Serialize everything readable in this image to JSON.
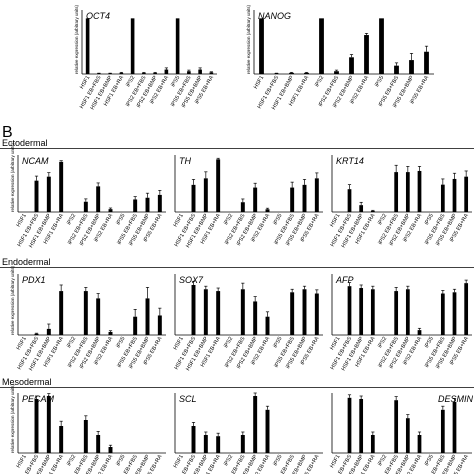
{
  "figure": {
    "panel_b_label": "B",
    "sections": [
      "Ectodermal",
      "Endodermal",
      "Mesodermal"
    ],
    "ylabel": "relative expression (arbitrary units)",
    "categories_short": [
      "HSF1",
      "HSF1 EB+FBS",
      "HSF1 EB+BMP",
      "HSF1 EB+RA",
      "iPS2",
      "iPS2 EB+FBS",
      "iPS2 EB+BMP",
      "iPS2 EB+RA",
      "iPS5",
      "iPS5 EB+FBS",
      "iPS5 EB+BMP",
      "iPS5 EB+RA"
    ],
    "categories_long": [
      "HSF1",
      "HSF1 EB+FBS",
      "HSF1 EB+BMP",
      "HSF1 EB+RA",
      "iPS2",
      "iPS2 EB+FBS",
      "iPS2 EB+BMP",
      "iPS2 EB+RA",
      "iPS5",
      "iPS5 EB+FBS",
      "iPS5 EB+BMP",
      "iPS5 EB+RA"
    ]
  },
  "chart_data": [
    {
      "type": "bar",
      "title": "OCT4",
      "section": "A",
      "ylabel": "relative expression (arbitrary units)",
      "categories": [
        "HSF1",
        "HSF1 EB+FBS",
        "HSF1 EB+BMP",
        "HSF1 EB+RA",
        "iPS2",
        "iPS2 EB+FBS",
        "iPS2 EB+BMP",
        "iPS2 EB+RA",
        "iPS5",
        "iPS5 EB+FBS",
        "iPS5 EB+BMP",
        "iPS5 EB+RA"
      ],
      "values": [
        1.0,
        0.01,
        0.01,
        0.02,
        1.0,
        0.02,
        0.02,
        0.08,
        1.0,
        0.05,
        0.08,
        0.03
      ],
      "errors": [
        0,
        0.005,
        0.005,
        0.01,
        0,
        0.01,
        0.01,
        0.03,
        0,
        0.02,
        0.03,
        0.01
      ],
      "ylim": [
        0,
        1.15
      ]
    },
    {
      "type": "bar",
      "title": "NANOG",
      "section": "A",
      "ylabel": "relative expression (arbitrary units)",
      "categories": [
        "HSF1",
        "HSF1 EB+FBS",
        "HSF1 EB+BMP",
        "HSF1 EB+RA",
        "iPS2",
        "iPS2 EB+FBS",
        "iPS2 EB+BMP",
        "iPS2 EB+RA",
        "iPS5",
        "iPS5 EB+FBS",
        "iPS5 EB+BMP",
        "iPS5 EB+RA"
      ],
      "values": [
        1.0,
        0.01,
        0.02,
        0.02,
        1.0,
        0.05,
        0.3,
        0.7,
        1.0,
        0.15,
        0.25,
        0.4
      ],
      "errors": [
        0,
        0.005,
        0.01,
        0.01,
        0,
        0.02,
        0.05,
        0.03,
        0,
        0.05,
        0.12,
        0.1
      ],
      "ylim": [
        0,
        1.15
      ]
    },
    {
      "type": "bar",
      "title": "NCAM",
      "section": "Ectodermal",
      "ylabel": "relative expression (arbitrary units)",
      "categories": [
        "HSF1",
        "HSF1 EB+FBS",
        "HSF1 EB+BMP",
        "HSF1 EB+RA",
        "iPS2",
        "iPS2 EB+FBS",
        "iPS2 EB+BMP",
        "iPS2 EB+RA",
        "iPS5",
        "iPS5 EB+FBS",
        "iPS5 EB+BMP",
        "iPS5 EB+RA"
      ],
      "values": [
        0,
        0.55,
        0.62,
        0.88,
        0,
        0.18,
        0.45,
        0.05,
        0,
        0.22,
        0.25,
        0.3
      ],
      "errors": [
        0,
        0.08,
        0.07,
        0.02,
        0,
        0.05,
        0.06,
        0.02,
        0,
        0.05,
        0.08,
        0.08
      ],
      "ylim": [
        0,
        1.0
      ]
    },
    {
      "type": "bar",
      "title": "TH",
      "section": "Ectodermal",
      "ylabel": "",
      "categories": [
        "HSF1",
        "HSF1 EB+FBS",
        "HSF1 EB+BMP",
        "HSF1 EB+RA",
        "iPS2",
        "iPS2 EB+FBS",
        "iPS2 EB+BMP",
        "iPS2 EB+RA",
        "iPS5",
        "iPS5 EB+FBS",
        "iPS5 EB+BMP",
        "iPS5 EB+RA"
      ],
      "values": [
        0,
        0.5,
        0.62,
        0.97,
        0,
        0.18,
        0.45,
        0.05,
        0,
        0.45,
        0.5,
        0.62
      ],
      "errors": [
        0,
        0.1,
        0.12,
        0.02,
        0,
        0.06,
        0.08,
        0.02,
        0,
        0.1,
        0.1,
        0.1
      ],
      "ylim": [
        0,
        1.05
      ]
    },
    {
      "type": "bar",
      "title": "KRT14",
      "section": "Ectodermal",
      "ylabel": "",
      "categories": [
        "HSF1",
        "HSF1 EB+FBS",
        "HSF1 EB+BMP",
        "HSF1 EB+RA",
        "iPS2",
        "iPS2 EB+FBS",
        "iPS2 EB+BMP",
        "iPS2 EB+RA",
        "iPS5",
        "iPS5 EB+FBS",
        "iPS5 EB+BMP",
        "iPS5 EB+RA"
      ],
      "values": [
        0,
        0.4,
        0.12,
        0.02,
        0,
        0.7,
        0.7,
        0.72,
        0,
        0.48,
        0.58,
        0.62
      ],
      "errors": [
        0,
        0.08,
        0.05,
        0.01,
        0,
        0.12,
        0.1,
        0.08,
        0,
        0.1,
        0.1,
        0.1
      ],
      "ylim": [
        0,
        1.0
      ]
    },
    {
      "type": "bar",
      "title": "PDX1",
      "section": "Endodermal",
      "ylabel": "relative expression (arbitrary units)",
      "categories": [
        "HSF1",
        "HSF1 EB+FBS",
        "HSF1 EB+BMP",
        "HSF1 EB+RA",
        "iPS2",
        "iPS2 EB+FBS",
        "iPS2 EB+BMP",
        "iPS2 EB+RA",
        "iPS5",
        "iPS5 EB+FBS",
        "iPS5 EB+BMP",
        "iPS5 EB+RA"
      ],
      "values": [
        0,
        0.02,
        0.1,
        0.72,
        0,
        0.72,
        0.6,
        0.05,
        0,
        0.3,
        0.6,
        0.32
      ],
      "errors": [
        0,
        0.01,
        0.08,
        0.1,
        0,
        0.06,
        0.08,
        0.02,
        0,
        0.12,
        0.18,
        0.12
      ],
      "ylim": [
        0,
        1.0
      ]
    },
    {
      "type": "bar",
      "title": "SOX7",
      "section": "Endodermal",
      "ylabel": "",
      "categories": [
        "HSF1",
        "HSF1 EB+FBS",
        "HSF1 EB+BMP",
        "HSF1 EB+RA",
        "iPS2",
        "iPS2 EB+FBS",
        "iPS2 EB+BMP",
        "iPS2 EB+RA",
        "iPS5",
        "iPS5 EB+FBS",
        "iPS5 EB+BMP",
        "iPS5 EB+RA"
      ],
      "values": [
        0,
        0.82,
        0.75,
        0.72,
        0,
        0.75,
        0.55,
        0.3,
        0,
        0.7,
        0.75,
        0.68
      ],
      "errors": [
        0,
        0.06,
        0.05,
        0.05,
        0,
        0.1,
        0.08,
        0.08,
        0,
        0.05,
        0.05,
        0.06
      ],
      "ylim": [
        0,
        1.0
      ]
    },
    {
      "type": "bar",
      "title": "AFP",
      "section": "Endodermal",
      "ylabel": "",
      "categories": [
        "HSF1",
        "HSF1 EB+FBS",
        "HSF1 EB+BMP",
        "HSF1 EB+RA",
        "iPS2",
        "iPS2 EB+FBS",
        "iPS2 EB+BMP",
        "iPS2 EB+RA",
        "iPS5",
        "iPS5 EB+FBS",
        "iPS5 EB+BMP",
        "iPS5 EB+RA"
      ],
      "values": [
        0,
        0.8,
        0.77,
        0.75,
        0,
        0.72,
        0.75,
        0.08,
        0,
        0.68,
        0.7,
        0.85
      ],
      "errors": [
        0,
        0.06,
        0.05,
        0.05,
        0,
        0.06,
        0.05,
        0.03,
        0,
        0.05,
        0.05,
        0.05
      ],
      "ylim": [
        0,
        1.0
      ]
    },
    {
      "type": "bar",
      "title": "PECAM",
      "section": "Mesodermal",
      "ylabel": "relative expression (arbitrary units)",
      "categories": [
        "HSF1",
        "HSF1 EB+FBS",
        "HSF1 EB+BMP",
        "HSF1 EB+RA",
        "iPS2",
        "iPS2 EB+FBS",
        "iPS2 EB+BMP",
        "iPS2 EB+RA",
        "iPS5",
        "iPS5 EB+FBS",
        "iPS5 EB+BMP",
        "iPS5 EB+RA"
      ],
      "values": [
        0,
        0.9,
        0.95,
        0.45,
        0,
        0.55,
        0.3,
        0.1,
        0,
        0,
        0,
        0
      ],
      "errors": [
        0,
        0.05,
        0.04,
        0.08,
        0,
        0.07,
        0.06,
        0.03,
        0,
        0,
        0,
        0
      ],
      "ylim": [
        0,
        1.0
      ]
    },
    {
      "type": "bar",
      "title": "SCL",
      "section": "Mesodermal",
      "ylabel": "",
      "categories": [
        "HSF1",
        "HSF1 EB+FBS",
        "HSF1 EB+BMP",
        "HSF1 EB+RA",
        "iPS2",
        "iPS2 EB+FBS",
        "iPS2 EB+BMP",
        "iPS2 EB+RA",
        "iPS5",
        "iPS5 EB+FBS",
        "iPS5 EB+BMP",
        "iPS5 EB+RA"
      ],
      "values": [
        0,
        0.45,
        0.3,
        0.28,
        0,
        0.3,
        0.95,
        0.72,
        0,
        0,
        0,
        0
      ],
      "errors": [
        0,
        0.06,
        0.05,
        0.05,
        0,
        0.05,
        0.05,
        0.06,
        0,
        0,
        0,
        0
      ],
      "ylim": [
        0,
        1.0
      ]
    },
    {
      "type": "bar",
      "title": "DESMIN",
      "section": "Mesodermal",
      "ylabel": "",
      "categories": [
        "HSF1",
        "HSF1 EB+FBS",
        "HSF1 EB+BMP",
        "HSF1 EB+RA",
        "iPS2",
        "iPS2 EB+FBS",
        "iPS2 EB+BMP",
        "iPS2 EB+RA",
        "iPS5",
        "iPS5 EB+FBS",
        "iPS5 EB+BMP",
        "iPS5 EB+RA"
      ],
      "values": [
        0,
        0.92,
        0.9,
        0.3,
        0,
        0.88,
        0.58,
        0.3,
        0,
        0.72,
        0.85,
        0
      ],
      "errors": [
        0,
        0.05,
        0.05,
        0.05,
        0,
        0.06,
        0.06,
        0.05,
        0,
        0.06,
        0.06,
        0
      ],
      "ylim": [
        0,
        1.0
      ]
    }
  ]
}
